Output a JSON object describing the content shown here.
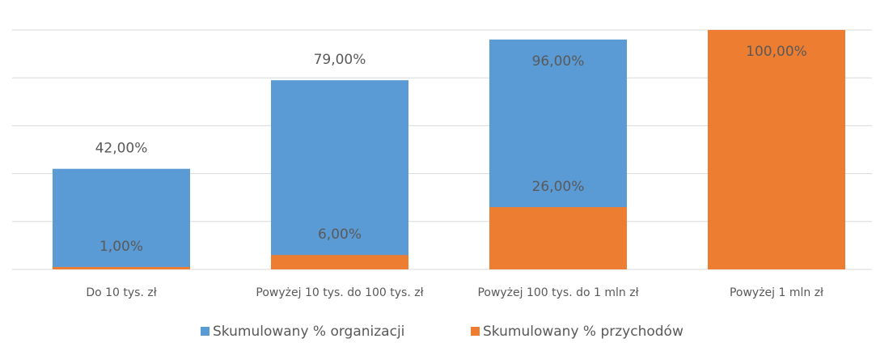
{
  "chart_data": {
    "type": "bar",
    "categories": [
      "Do 10 tys. zł",
      "Powyżej 10 tys. do 100 tys. zł",
      "Powyżej 100 tys. do 1 mln zł",
      "Powyżej 1 mln zł"
    ],
    "series": [
      {
        "name": "Skumulowany % organizacji",
        "color": "#5b9bd5",
        "values": [
          42,
          79,
          96,
          100
        ],
        "value_labels": [
          "42,00%",
          "79,00%",
          "96,00%",
          null
        ]
      },
      {
        "name": "Skumulowany % przychodów",
        "color": "#ed7d31",
        "values": [
          1,
          6,
          26,
          100
        ],
        "value_labels": [
          "1,00%",
          "6,00%",
          "26,00%",
          "100,00%"
        ]
      }
    ],
    "ylim": [
      0,
      100
    ],
    "yticks": [
      0,
      20,
      40,
      60,
      80,
      100
    ],
    "grid": true,
    "legend": "bottom"
  }
}
